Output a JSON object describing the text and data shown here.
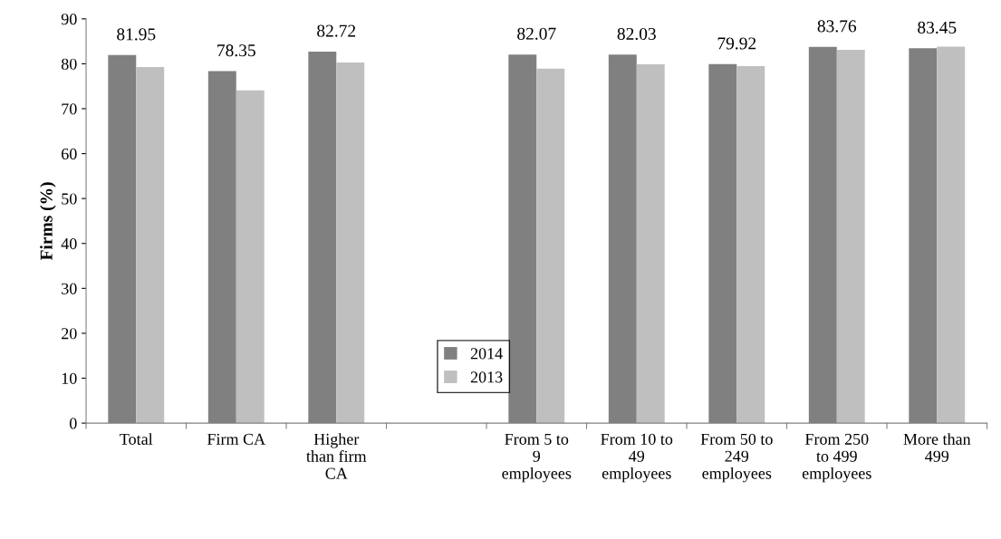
{
  "chart_data": {
    "type": "bar",
    "ylabel": "Firms (%)",
    "categories": [
      "Total",
      "Firm CA",
      "Higher\nthan firm\nCA",
      null,
      "From 5 to\n9\nemployees",
      "From 10 to\n49\nemployees",
      "From 50 to\n249\nemployees",
      "From 250\nto 499\nemployees",
      "More than\n499"
    ],
    "series": [
      {
        "name": "2014",
        "color": "#808080",
        "values": [
          81.95,
          78.35,
          82.72,
          null,
          82.07,
          82.03,
          79.92,
          83.76,
          83.45
        ],
        "value_labels": [
          "81.95",
          "78.35",
          "82.72",
          null,
          "82.07",
          "82.03",
          "79.92",
          "83.76",
          "83.45"
        ]
      },
      {
        "name": "2013",
        "color": "#bfbfbf",
        "values": [
          79.3,
          74.1,
          80.3,
          null,
          78.9,
          79.9,
          79.5,
          83.1,
          83.8
        ]
      }
    ],
    "ylim": [
      0,
      90
    ],
    "yticks": [
      0,
      10,
      20,
      30,
      40,
      50,
      60,
      70,
      80,
      90
    ],
    "grid": false,
    "legend": "bottom center"
  }
}
